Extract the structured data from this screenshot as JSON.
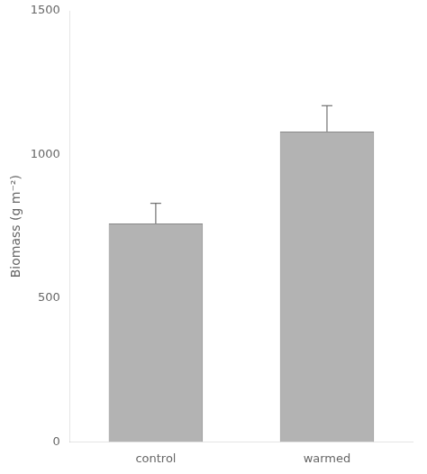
{
  "chart_data": {
    "type": "bar",
    "categories": [
      "control",
      "warmed"
    ],
    "values": [
      760,
      1080
    ],
    "errors_upper": [
      70,
      90
    ],
    "color": "#b3b3b3",
    "ylabel": "Biomass (g m⁻²)",
    "ylim": [
      0,
      1500
    ],
    "yticks": [
      0,
      500,
      1000,
      1500
    ],
    "grid": false
  }
}
